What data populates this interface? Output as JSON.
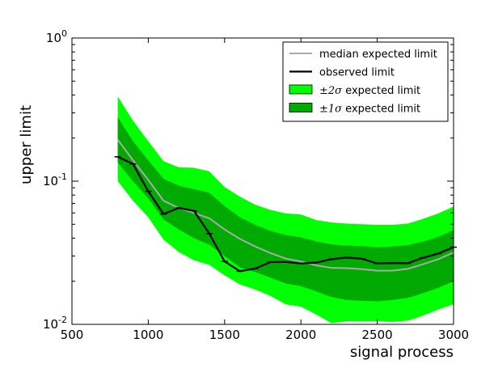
{
  "chart_data": {
    "type": "line",
    "title": "",
    "xlabel": "signal process",
    "ylabel": "upper limit",
    "xlim": [
      500,
      3000
    ],
    "ylim": [
      0.01,
      1
    ],
    "yscale": "log",
    "grid": false,
    "legend_position": "top-right",
    "x_ticks": [
      500,
      1000,
      1500,
      2000,
      2500,
      3000
    ],
    "x_tick_labels": [
      "500",
      "1000",
      "1500",
      "2000",
      "2500",
      "3000"
    ],
    "y_ticks": [
      0.01,
      0.1,
      1
    ],
    "y_tick_labels": [
      {
        "base": "10",
        "exp": "-2"
      },
      {
        "base": "10",
        "exp": "-1"
      },
      {
        "base": "10",
        "exp": "0"
      }
    ],
    "x": [
      800,
      900,
      1000,
      1100,
      1200,
      1300,
      1400,
      1500,
      1600,
      1700,
      1800,
      1900,
      2000,
      2100,
      2200,
      2300,
      2400,
      2500,
      2600,
      2700,
      2800,
      2900,
      3000
    ],
    "bands": [
      {
        "name": "±2σ expected limit",
        "legend_math": "±2σ",
        "legend_rest": " expected limit",
        "color": "#00ff00",
        "lower": [
          0.1,
          0.073,
          0.056,
          0.039,
          0.032,
          0.028,
          0.026,
          0.022,
          0.019,
          0.0175,
          0.0158,
          0.0138,
          0.0133,
          0.0117,
          0.0102,
          0.0105,
          0.0105,
          0.0105,
          0.0104,
          0.0106,
          0.0115,
          0.0127,
          0.0138
        ],
        "upper": [
          0.39,
          0.265,
          0.19,
          0.138,
          0.125,
          0.124,
          0.117,
          0.091,
          0.078,
          0.0685,
          0.063,
          0.0595,
          0.0585,
          0.0535,
          0.0515,
          0.0505,
          0.05,
          0.0495,
          0.0495,
          0.0505,
          0.0545,
          0.0595,
          0.0665
        ]
      },
      {
        "name": "±1σ expected limit",
        "legend_math": "±1σ",
        "legend_rest": " expected limit",
        "color": "#00aa00",
        "lower": [
          0.135,
          0.1,
          0.076,
          0.054,
          0.046,
          0.04,
          0.036,
          0.03,
          0.025,
          0.0232,
          0.0212,
          0.0193,
          0.0185,
          0.017,
          0.0155,
          0.0148,
          0.0146,
          0.0145,
          0.0148,
          0.0153,
          0.0165,
          0.018,
          0.02
        ],
        "upper": [
          0.28,
          0.19,
          0.14,
          0.104,
          0.093,
          0.088,
          0.083,
          0.067,
          0.056,
          0.0495,
          0.045,
          0.042,
          0.0405,
          0.038,
          0.0362,
          0.0355,
          0.0352,
          0.0345,
          0.035,
          0.0358,
          0.0378,
          0.0408,
          0.0455
        ]
      }
    ],
    "series": [
      {
        "name": "median expected limit",
        "color": "#aaaaaa",
        "values": [
          0.195,
          0.14,
          0.102,
          0.073,
          0.065,
          0.06,
          0.055,
          0.046,
          0.0395,
          0.035,
          0.0315,
          0.0288,
          0.0275,
          0.0258,
          0.0248,
          0.0247,
          0.0243,
          0.0237,
          0.0237,
          0.0244,
          0.0263,
          0.0285,
          0.0318
        ]
      },
      {
        "name": "observed limit",
        "color": "#000000",
        "markers": true,
        "values": [
          0.148,
          0.132,
          0.085,
          0.059,
          0.065,
          0.062,
          0.043,
          0.0275,
          0.0235,
          0.0245,
          0.0272,
          0.0273,
          0.0266,
          0.027,
          0.0285,
          0.0293,
          0.0287,
          0.0266,
          0.0268,
          0.0267,
          0.0292,
          0.0312,
          0.0346
        ]
      }
    ]
  }
}
